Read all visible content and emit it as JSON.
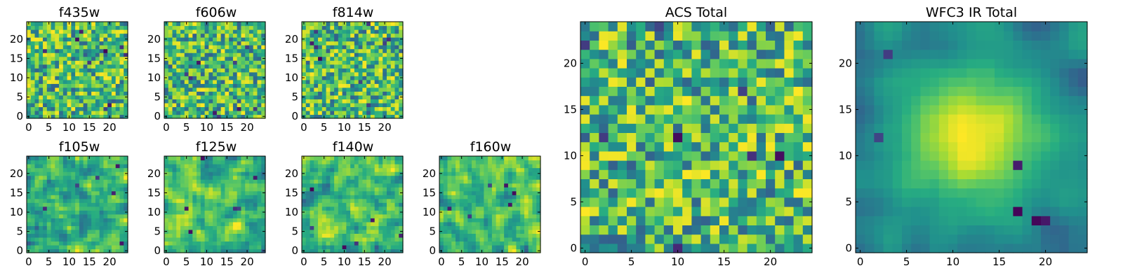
{
  "chart_data": [
    {
      "type": "heatmap",
      "title": "f435w",
      "grid_size": 25,
      "xticks": [
        "0",
        "5",
        "10",
        "15",
        "20"
      ],
      "yticks": [
        "0",
        "5",
        "10",
        "15",
        "20"
      ],
      "colormap": "viridis",
      "seed": 11,
      "profile": "noisy"
    },
    {
      "type": "heatmap",
      "title": "f606w",
      "grid_size": 25,
      "xticks": [
        "0",
        "5",
        "10",
        "15",
        "20"
      ],
      "yticks": [
        "0",
        "5",
        "10",
        "15",
        "20"
      ],
      "colormap": "viridis",
      "seed": 23,
      "profile": "noisy"
    },
    {
      "type": "heatmap",
      "title": "f814w",
      "grid_size": 25,
      "xticks": [
        "0",
        "5",
        "10",
        "15",
        "20"
      ],
      "yticks": [
        "0",
        "5",
        "10",
        "15",
        "20"
      ],
      "colormap": "viridis",
      "seed": 37,
      "profile": "noisy"
    },
    {
      "type": "heatmap",
      "title": "f105w",
      "grid_size": 25,
      "xticks": [
        "0",
        "5",
        "10",
        "15",
        "20"
      ],
      "yticks": [
        "0",
        "5",
        "10",
        "15",
        "20"
      ],
      "colormap": "viridis",
      "seed": 41,
      "profile": "smooth"
    },
    {
      "type": "heatmap",
      "title": "f125w",
      "grid_size": 25,
      "xticks": [
        "0",
        "5",
        "10",
        "15",
        "20"
      ],
      "yticks": [
        "0",
        "5",
        "10",
        "15",
        "20"
      ],
      "colormap": "viridis",
      "seed": 53,
      "profile": "smooth"
    },
    {
      "type": "heatmap",
      "title": "f140w",
      "grid_size": 25,
      "xticks": [
        "0",
        "5",
        "10",
        "15",
        "20"
      ],
      "yticks": [
        "0",
        "5",
        "10",
        "15",
        "20"
      ],
      "colormap": "viridis",
      "seed": 67,
      "profile": "smooth"
    },
    {
      "type": "heatmap",
      "title": "f160w",
      "grid_size": 25,
      "xticks": [
        "0",
        "5",
        "10",
        "15",
        "20"
      ],
      "yticks": [
        "0",
        "5",
        "10",
        "15",
        "20"
      ],
      "colormap": "viridis",
      "seed": 79,
      "profile": "smooth"
    },
    {
      "type": "heatmap",
      "title": "ACS Total",
      "grid_size": 25,
      "xticks": [
        "0",
        "5",
        "10",
        "15",
        "20"
      ],
      "yticks": [
        "0",
        "5",
        "10",
        "15",
        "20"
      ],
      "colormap": "viridis",
      "seed": 97,
      "profile": "blocky"
    },
    {
      "type": "heatmap",
      "title": "WFC3 IR Total",
      "grid_size": 25,
      "xticks": [
        "0",
        "5",
        "10",
        "15",
        "20"
      ],
      "yticks": [
        "0",
        "5",
        "10",
        "15",
        "20"
      ],
      "colormap": "viridis",
      "seed": 113,
      "profile": "blob"
    }
  ]
}
